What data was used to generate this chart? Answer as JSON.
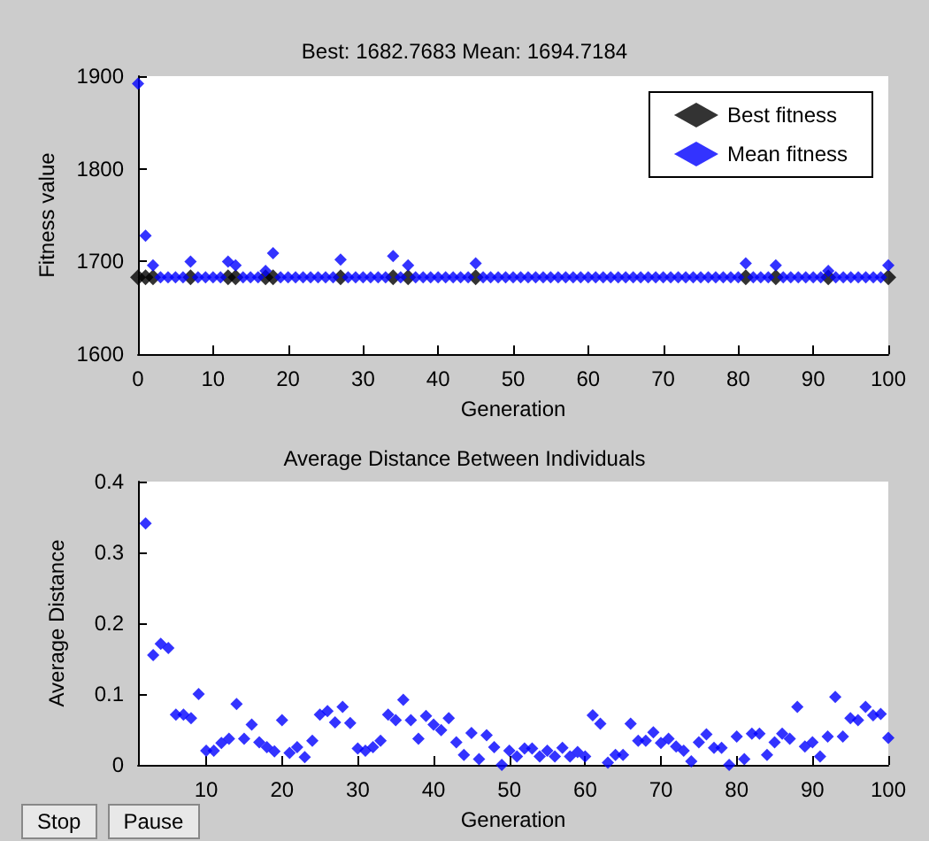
{
  "chart_data": [
    {
      "type": "scatter",
      "title": "Best: 1682.7683 Mean: 1694.7184",
      "xlabel": "Generation",
      "ylabel": "Fitness value",
      "x": [
        0,
        1,
        2,
        3,
        4,
        5,
        6,
        7,
        8,
        9,
        10,
        11,
        12,
        13,
        14,
        15,
        16,
        17,
        18,
        19,
        20,
        21,
        22,
        23,
        24,
        25,
        26,
        27,
        28,
        29,
        30,
        31,
        32,
        33,
        34,
        35,
        36,
        37,
        38,
        39,
        40,
        41,
        42,
        43,
        44,
        45,
        46,
        47,
        48,
        49,
        50,
        51,
        52,
        53,
        54,
        55,
        56,
        57,
        58,
        59,
        60,
        61,
        62,
        63,
        64,
        65,
        66,
        67,
        68,
        69,
        70,
        71,
        72,
        73,
        74,
        75,
        76,
        77,
        78,
        79,
        80,
        81,
        82,
        83,
        84,
        85,
        86,
        87,
        88,
        89,
        90,
        91,
        92,
        93,
        94,
        95,
        96,
        97,
        98,
        99,
        100
      ],
      "series": [
        {
          "name": "Best fitness",
          "color": "#000000",
          "values": [
            1683,
            1683,
            1683,
            null,
            null,
            null,
            null,
            1683,
            null,
            null,
            null,
            null,
            1683,
            1683,
            null,
            null,
            null,
            1683,
            1683,
            null,
            null,
            null,
            null,
            null,
            null,
            null,
            null,
            1683,
            null,
            null,
            null,
            null,
            null,
            null,
            1683,
            null,
            1683,
            null,
            null,
            null,
            null,
            null,
            null,
            null,
            null,
            1683,
            null,
            null,
            null,
            null,
            null,
            null,
            null,
            null,
            null,
            null,
            null,
            null,
            null,
            null,
            null,
            null,
            null,
            null,
            null,
            null,
            null,
            null,
            null,
            null,
            null,
            null,
            null,
            null,
            null,
            null,
            null,
            null,
            null,
            null,
            null,
            1683,
            null,
            null,
            null,
            1683,
            null,
            null,
            null,
            null,
            null,
            null,
            1683,
            null,
            null,
            null,
            null,
            null,
            null,
            null,
            1683
          ]
        },
        {
          "name": "Mean fitness",
          "color": "#0000ff",
          "values": [
            1892,
            1728,
            1696,
            1683,
            1683,
            1683,
            1683,
            1700,
            1683,
            1683,
            1683,
            1683,
            1700,
            1696,
            1683,
            1683,
            1683,
            1690,
            1709,
            1683,
            1683,
            1683,
            1683,
            1683,
            1683,
            1683,
            1683,
            1702,
            1683,
            1683,
            1683,
            1683,
            1683,
            1683,
            1706,
            1683,
            1696,
            1683,
            1683,
            1683,
            1683,
            1683,
            1683,
            1683,
            1683,
            1698,
            1683,
            1683,
            1683,
            1683,
            1683,
            1683,
            1683,
            1683,
            1683,
            1683,
            1683,
            1683,
            1683,
            1683,
            1683,
            1683,
            1683,
            1683,
            1683,
            1683,
            1683,
            1683,
            1683,
            1683,
            1683,
            1683,
            1683,
            1683,
            1683,
            1683,
            1683,
            1683,
            1683,
            1683,
            1683,
            1698,
            1683,
            1683,
            1683,
            1696,
            1683,
            1683,
            1683,
            1683,
            1683,
            1683,
            1690,
            1683,
            1683,
            1683,
            1683,
            1683,
            1683,
            1683,
            1696
          ]
        }
      ],
      "xlim": [
        0,
        100
      ],
      "xticks": [
        0,
        10,
        20,
        30,
        40,
        50,
        60,
        70,
        80,
        90,
        100
      ],
      "ylim": [
        1600,
        1900
      ],
      "yticks": [
        1600,
        1700,
        1800,
        1900
      ],
      "marker": "diamond",
      "grid": false,
      "legend": "top right"
    },
    {
      "type": "scatter",
      "title": "Average Distance Between Individuals",
      "xlabel": "Generation",
      "ylabel": "Average Distance",
      "x": [
        2,
        3,
        4,
        5,
        6,
        7,
        8,
        9,
        10,
        11,
        12,
        13,
        14,
        15,
        16,
        17,
        18,
        19,
        20,
        21,
        22,
        23,
        24,
        25,
        26,
        27,
        28,
        29,
        30,
        31,
        32,
        33,
        34,
        35,
        36,
        37,
        38,
        39,
        40,
        41,
        42,
        43,
        44,
        45,
        46,
        47,
        48,
        49,
        50,
        51,
        52,
        53,
        54,
        55,
        56,
        57,
        58,
        59,
        60,
        61,
        62,
        63,
        64,
        65,
        66,
        67,
        68,
        69,
        70,
        71,
        72,
        73,
        74,
        75,
        76,
        77,
        78,
        79,
        80,
        81,
        82,
        83,
        84,
        85,
        86,
        87,
        88,
        89,
        90,
        91,
        92,
        93,
        94,
        95,
        96,
        97,
        98,
        99,
        100
      ],
      "color": "#0000ff",
      "values": [
        0.341,
        0.155,
        0.171,
        0.165,
        0.071,
        0.071,
        0.066,
        0.1,
        0.02,
        0.02,
        0.031,
        0.037,
        0.086,
        0.037,
        0.057,
        0.032,
        0.025,
        0.019,
        0.063,
        0.017,
        0.025,
        0.011,
        0.034,
        0.071,
        0.076,
        0.06,
        0.082,
        0.059,
        0.023,
        0.02,
        0.025,
        0.034,
        0.071,
        0.063,
        0.092,
        0.063,
        0.037,
        0.069,
        0.057,
        0.049,
        0.066,
        0.032,
        0.014,
        0.045,
        0.008,
        0.042,
        0.025,
        0.0,
        0.02,
        0.012,
        0.023,
        0.023,
        0.012,
        0.02,
        0.012,
        0.024,
        0.012,
        0.018,
        0.012,
        0.07,
        0.058,
        0.003,
        0.014,
        0.014,
        0.058,
        0.034,
        0.034,
        0.046,
        0.031,
        0.037,
        0.026,
        0.02,
        0.005,
        0.032,
        0.043,
        0.024,
        0.024,
        0.0,
        0.04,
        0.008,
        0.044,
        0.044,
        0.014,
        0.032,
        0.044,
        0.037,
        0.082,
        0.026,
        0.032,
        0.012,
        0.04,
        0.096,
        0.04,
        0.066,
        0.063,
        0.082,
        0.07,
        0.072,
        0.038
      ],
      "xlim": [
        1,
        100
      ],
      "xticks": [
        10,
        20,
        30,
        40,
        50,
        60,
        70,
        80,
        90,
        100
      ],
      "ylim": [
        0,
        0.4
      ],
      "yticks": [
        0,
        0.1,
        0.2,
        0.3,
        0.4
      ],
      "marker": "diamond",
      "grid": false,
      "legend": false,
      "annotations": [
        "Stop",
        "Pause"
      ]
    }
  ]
}
